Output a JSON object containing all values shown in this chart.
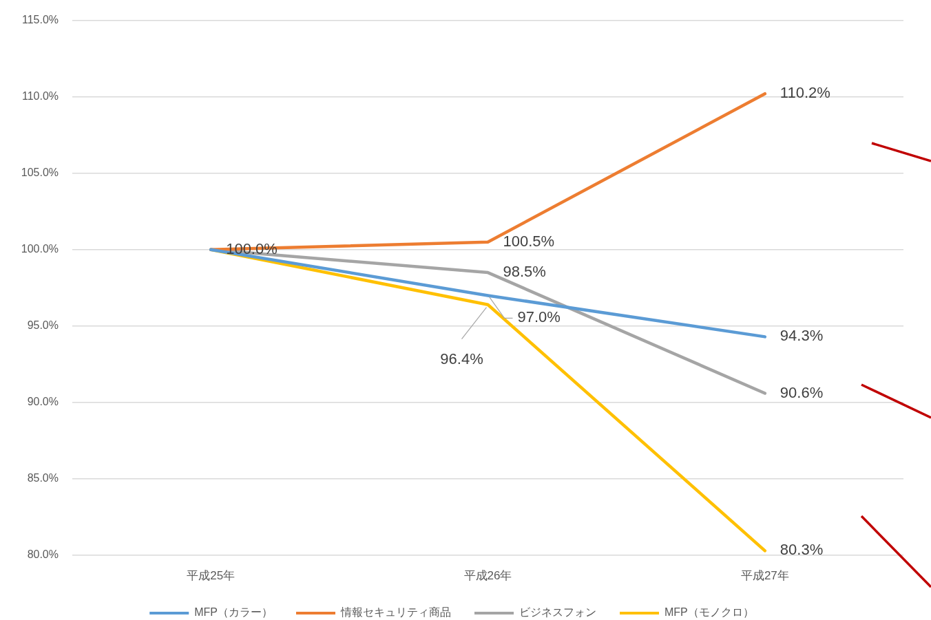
{
  "chart_data": {
    "type": "line",
    "categories": [
      "平成25年",
      "平成26年",
      "平成27年"
    ],
    "series": [
      {
        "name": "MFP（カラー）",
        "color": "#5b9bd5",
        "values": [
          100.0,
          97.0,
          94.3
        ],
        "value_labels": [
          null,
          "97.0%",
          "94.3%"
        ]
      },
      {
        "name": "情報セキュリティ商品",
        "color": "#ed7d31",
        "values": [
          100.0,
          100.5,
          110.2
        ],
        "value_labels": [
          "100.0%",
          "100.5%",
          "110.2%"
        ]
      },
      {
        "name": "ビジネスフォン",
        "color": "#a5a5a5",
        "values": [
          100.0,
          98.5,
          90.6
        ],
        "value_labels": [
          null,
          "98.5%",
          "90.6%"
        ]
      },
      {
        "name": "MFP（モノクロ）",
        "color": "#ffc000",
        "values": [
          100.0,
          96.4,
          80.3
        ],
        "value_labels": [
          null,
          "96.4%",
          "80.3%"
        ]
      }
    ],
    "ylim": [
      80,
      115
    ],
    "yticks": [
      {
        "value": 80,
        "label": "80.0%"
      },
      {
        "value": 85,
        "label": "85.0%"
      },
      {
        "value": 90,
        "label": "90.0%"
      },
      {
        "value": 95,
        "label": "95.0%"
      },
      {
        "value": 100,
        "label": "100.0%"
      },
      {
        "value": 105,
        "label": "105.0%"
      },
      {
        "value": 110,
        "label": "110.0%"
      },
      {
        "value": 115,
        "label": "115.0%"
      }
    ],
    "grid": "y",
    "legend": "bottom",
    "marker": "none",
    "line_style": "solid"
  }
}
